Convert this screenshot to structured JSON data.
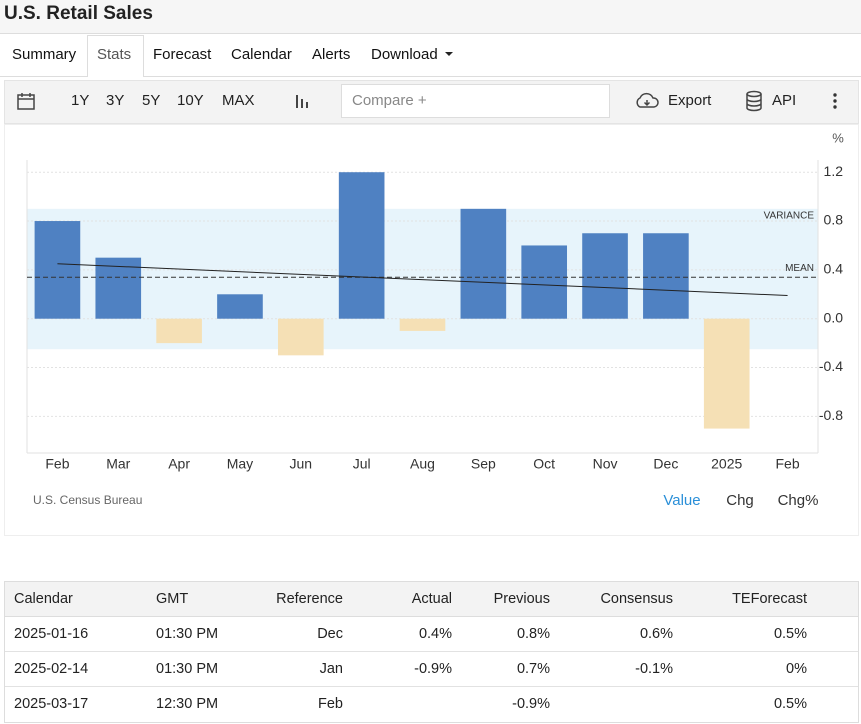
{
  "header": {
    "title": "U.S. Retail Sales"
  },
  "tabs": [
    "Summary",
    "Stats",
    "Forecast",
    "Calendar",
    "Alerts",
    "Download"
  ],
  "toolbar": {
    "ranges": [
      "1Y",
      "3Y",
      "5Y",
      "10Y",
      "MAX"
    ],
    "compare_placeholder": "Compare +",
    "export": "Export",
    "api": "API"
  },
  "chart_data": {
    "type": "bar",
    "unit": "%",
    "categories": [
      "Feb",
      "Mar",
      "Apr",
      "May",
      "Jun",
      "Jul",
      "Aug",
      "Sep",
      "Oct",
      "Nov",
      "Dec",
      "2025",
      "Feb"
    ],
    "values": [
      0.8,
      0.5,
      -0.2,
      0.2,
      -0.3,
      1.2,
      -0.1,
      0.9,
      0.6,
      0.7,
      0.7,
      -0.9,
      null
    ],
    "positive_color": "#4f81c2",
    "negative_color": "#f5e0b5",
    "ylim": [
      -1.1,
      1.3
    ],
    "yticks": [
      -0.8,
      -0.4,
      {
        "value": 0,
        "label": "0.0"
      },
      0.4,
      0.8,
      1.2
    ],
    "grid": true,
    "variance_label": "VARIANCE",
    "variance_band": [
      -0.25,
      0.9
    ],
    "mean_label": "MEAN",
    "mean": 0.34,
    "trend": [
      0.45,
      0.19
    ],
    "source": "U.S. Census Bureau"
  },
  "view_options": [
    "Value",
    "Chg",
    "Chg%"
  ],
  "table": {
    "columns": [
      "Calendar",
      "GMT",
      "Reference",
      "Actual",
      "Previous",
      "Consensus",
      "TEForecast"
    ],
    "rows": [
      [
        "2025-01-16",
        "01:30 PM",
        "Dec",
        "0.4%",
        "0.8%",
        "0.6%",
        "0.5%"
      ],
      [
        "2025-02-14",
        "01:30 PM",
        "Jan",
        "-0.9%",
        "0.7%",
        "-0.1%",
        "0%"
      ],
      [
        "2025-03-17",
        "12:30 PM",
        "Feb",
        null,
        "-0.9%",
        null,
        "0.5%"
      ]
    ]
  }
}
